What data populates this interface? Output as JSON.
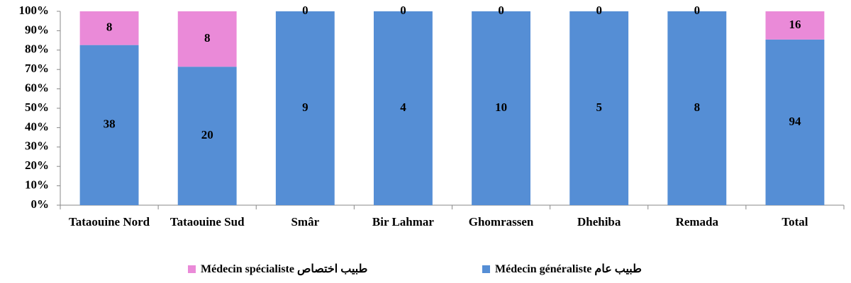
{
  "chart_data": {
    "type": "bar",
    "stacking": "percent",
    "categories": [
      "Tataouine Nord",
      "Tataouine Sud",
      "Smâr",
      "Bir Lahmar",
      "Ghomrassen",
      "Dhehiba",
      "Remada",
      "Total"
    ],
    "series": [
      {
        "name": "Médecin généraliste طبيب عام",
        "color": "#558ed5",
        "values": [
          38,
          20,
          9,
          4,
          10,
          5,
          8,
          94
        ]
      },
      {
        "name": "Médecin spécialiste طبيب اختصاص",
        "color": "#ea8ad8",
        "values": [
          8,
          8,
          0,
          0,
          0,
          0,
          0,
          16
        ]
      }
    ],
    "ylim": [
      0,
      100
    ],
    "yticks": [
      {
        "value": 0,
        "label": "0%"
      },
      {
        "value": 10,
        "label": "10%"
      },
      {
        "value": 20,
        "label": "20%"
      },
      {
        "value": 30,
        "label": "30%"
      },
      {
        "value": 40,
        "label": "40%"
      },
      {
        "value": 50,
        "label": "50%"
      },
      {
        "value": 60,
        "label": "60%"
      },
      {
        "value": 70,
        "label": "70%"
      },
      {
        "value": 80,
        "label": "80%"
      },
      {
        "value": 90,
        "label": "90%"
      },
      {
        "value": 100,
        "label": "100%"
      }
    ],
    "grid": false,
    "legend": "bottom"
  }
}
